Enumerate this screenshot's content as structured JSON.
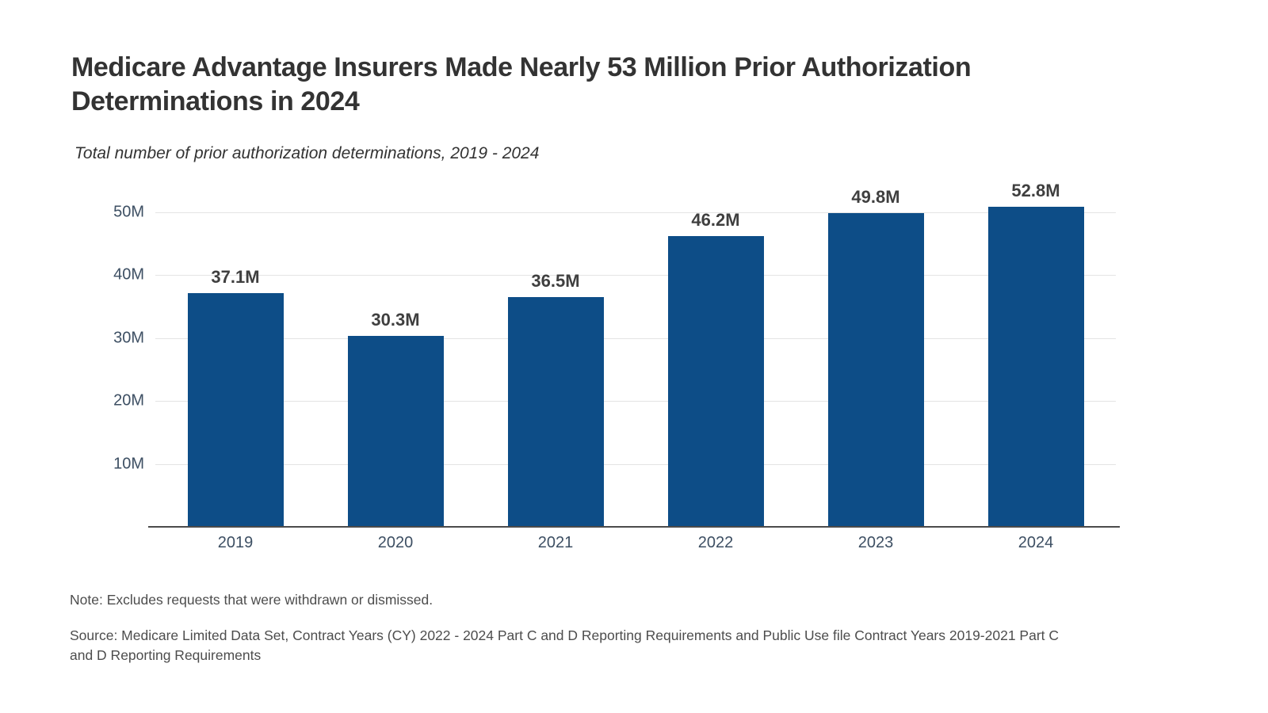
{
  "header": {
    "title": "Medicare Advantage Insurers Made Nearly 53 Million Prior Authorization Determinations in 2024",
    "subtitle": "Total number of prior authorization determinations, 2019 - 2024"
  },
  "chart_data": {
    "type": "bar",
    "title": "Medicare Advantage Insurers Made Nearly 53 Million Prior Authorization Determinations in 2024",
    "subtitle": "Total number of prior authorization determinations, 2019 - 2024",
    "categories": [
      "2019",
      "2020",
      "2021",
      "2022",
      "2023",
      "2024"
    ],
    "values": [
      37.1,
      30.3,
      36.5,
      46.2,
      49.8,
      52.8
    ],
    "value_labels": [
      "37.1M",
      "30.3M",
      "36.5M",
      "46.2M",
      "49.8M",
      "52.8M"
    ],
    "unit": "M",
    "xlabel": "",
    "ylabel": "",
    "ylim": [
      0,
      55
    ],
    "y_tick_values": [
      10,
      20,
      30,
      40,
      50
    ],
    "y_tick_labels": [
      "10M",
      "20M",
      "30M",
      "40M",
      "50M"
    ],
    "grid": "horizontal",
    "legend": "none",
    "bar_color": "#0d4d87",
    "gridline_color": "#e4e4e4",
    "axis_line_color": "#4b4b4b",
    "tick_label_color": "#3d4f63",
    "value_label_color": "#3f3f3f"
  },
  "footer": {
    "note": "Note: Excludes requests that were withdrawn or dismissed.",
    "source": "Source: Medicare Limited Data Set, Contract Years (CY) 2022 - 2024 Part C and D Reporting Requirements and Public Use file Contract Years 2019-2021 Part C and D Reporting Requirements"
  }
}
